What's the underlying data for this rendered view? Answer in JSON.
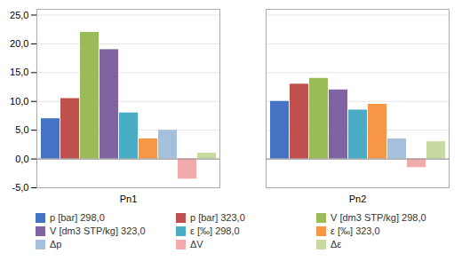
{
  "chart_data": {
    "type": "bar",
    "categories": [
      "Pn1",
      "Pn2"
    ],
    "series": [
      {
        "name": "p [bar] 298,0",
        "color": "#4472C4",
        "values": [
          7.0,
          10.0
        ]
      },
      {
        "name": "p [bar] 323,0",
        "color": "#C0504D",
        "values": [
          10.5,
          13.0
        ]
      },
      {
        "name": "V [dm3 STP/kg] 298,0",
        "color": "#9BBB59",
        "values": [
          22.0,
          14.0
        ]
      },
      {
        "name": "V [dm3 STP/kg] 323,0",
        "color": "#8064A2",
        "values": [
          19.0,
          12.0
        ]
      },
      {
        "name": "ε [‰] 298,0",
        "color": "#4BACC6",
        "values": [
          8.0,
          8.5
        ]
      },
      {
        "name": "ε [‰] 323,0",
        "color": "#F79646",
        "values": [
          3.5,
          9.5
        ]
      },
      {
        "name": "Δp",
        "color": "#A5C0DC",
        "values": [
          5.0,
          3.5
        ]
      },
      {
        "name": "ΔV",
        "color": "#F2ABAB",
        "values": [
          -3.5,
          -1.5
        ]
      },
      {
        "name": "Δε",
        "color": "#C6D9A0",
        "values": [
          1.0,
          3.0
        ]
      }
    ],
    "ylim": [
      -5.0,
      26.0
    ],
    "yticks": [
      {
        "value": -5.0,
        "label": "-5,0"
      },
      {
        "value": 0.0,
        "label": "0,0"
      },
      {
        "value": 5.0,
        "label": "5,0"
      },
      {
        "value": 10.0,
        "label": "10,0"
      },
      {
        "value": 15.0,
        "label": "15,0"
      },
      {
        "value": 20.0,
        "label": "20,0"
      },
      {
        "value": 25.0,
        "label": "25,0"
      }
    ],
    "grid": true,
    "legend": "bottom"
  }
}
